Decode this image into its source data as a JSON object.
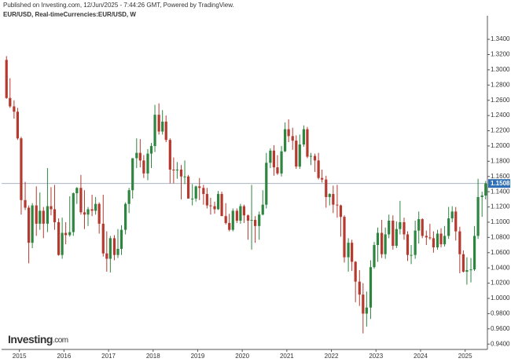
{
  "chart_data": {
    "type": "candlestick",
    "published": "Published on Investing.com, 12/Jun/2025 - 7:44:26 GMT, Powered by TradingView.",
    "title": "EUR/USD, Real-timeCurrencies:EUR/USD, W",
    "logo": {
      "brand": "Investing",
      "suffix": ".com"
    },
    "up_color": "#2e8540",
    "down_color": "#b5392e",
    "last_price": {
      "value": 1.1508,
      "label": "1.1508"
    },
    "last_price_color": "#2f6fb5",
    "xlim": [
      2014.6,
      2025.5
    ],
    "xticks": [
      2015,
      2016,
      2017,
      2018,
      2019,
      2020,
      2021,
      2022,
      2023,
      2024,
      2025
    ],
    "ylim": [
      0.933,
      1.371
    ],
    "yticks": [
      {
        "value": 0.94,
        "label": "0.9400"
      },
      {
        "value": 0.96,
        "label": "0.9600"
      },
      {
        "value": 0.98,
        "label": "0.9800"
      },
      {
        "value": 1.0,
        "label": "1.0000"
      },
      {
        "value": 1.02,
        "label": "1.0200"
      },
      {
        "value": 1.04,
        "label": "1.0400"
      },
      {
        "value": 1.06,
        "label": "1.0600"
      },
      {
        "value": 1.08,
        "label": "1.0800"
      },
      {
        "value": 1.1,
        "label": "1.1000"
      },
      {
        "value": 1.12,
        "label": "1.1200"
      },
      {
        "value": 1.14,
        "label": "1.1400"
      },
      {
        "value": 1.16,
        "label": "1.1600"
      },
      {
        "value": 1.18,
        "label": "1.1800"
      },
      {
        "value": 1.2,
        "label": "1.2000"
      },
      {
        "value": 1.22,
        "label": "1.2200"
      },
      {
        "value": 1.24,
        "label": "1.2400"
      },
      {
        "value": 1.26,
        "label": "1.2600"
      },
      {
        "value": 1.28,
        "label": "1.2800"
      },
      {
        "value": 1.3,
        "label": "1.3000"
      },
      {
        "value": 1.32,
        "label": "1.3200"
      },
      {
        "value": 1.34,
        "label": "1.3400"
      }
    ],
    "x": [
      2014.71,
      2014.79,
      2014.88,
      2014.96,
      2015.04,
      2015.13,
      2015.21,
      2015.29,
      2015.38,
      2015.46,
      2015.54,
      2015.63,
      2015.71,
      2015.79,
      2015.88,
      2015.96,
      2016.04,
      2016.13,
      2016.21,
      2016.29,
      2016.38,
      2016.46,
      2016.54,
      2016.63,
      2016.71,
      2016.79,
      2016.88,
      2016.96,
      2017.04,
      2017.13,
      2017.21,
      2017.29,
      2017.38,
      2017.46,
      2017.54,
      2017.63,
      2017.71,
      2017.79,
      2017.88,
      2017.96,
      2018.04,
      2018.13,
      2018.21,
      2018.29,
      2018.38,
      2018.46,
      2018.54,
      2018.63,
      2018.71,
      2018.79,
      2018.88,
      2018.96,
      2019.04,
      2019.13,
      2019.21,
      2019.29,
      2019.38,
      2019.46,
      2019.54,
      2019.63,
      2019.71,
      2019.79,
      2019.88,
      2019.96,
      2020.04,
      2020.13,
      2020.21,
      2020.29,
      2020.38,
      2020.46,
      2020.54,
      2020.63,
      2020.71,
      2020.79,
      2020.88,
      2020.96,
      2021.04,
      2021.13,
      2021.21,
      2021.29,
      2021.38,
      2021.46,
      2021.54,
      2021.63,
      2021.71,
      2021.79,
      2021.88,
      2021.96,
      2022.04,
      2022.13,
      2022.21,
      2022.29,
      2022.38,
      2022.46,
      2022.54,
      2022.63,
      2022.71,
      2022.79,
      2022.88,
      2022.96,
      2023.04,
      2023.13,
      2023.21,
      2023.29,
      2023.38,
      2023.46,
      2023.54,
      2023.63,
      2023.71,
      2023.79,
      2023.88,
      2023.96,
      2024.04,
      2024.13,
      2024.21,
      2024.29,
      2024.38,
      2024.46,
      2024.54,
      2024.63,
      2024.71,
      2024.79,
      2024.88,
      2024.96,
      2025.04,
      2025.13,
      2025.21,
      2025.29,
      2025.38,
      2025.46
    ],
    "candles": [
      [
        1.313,
        1.318,
        1.262,
        1.263
      ],
      [
        1.263,
        1.289,
        1.25,
        1.252
      ],
      [
        1.252,
        1.26,
        1.236,
        1.245
      ],
      [
        1.245,
        1.25,
        1.208,
        1.21
      ],
      [
        1.21,
        1.212,
        1.11,
        1.129
      ],
      [
        1.129,
        1.153,
        1.116,
        1.119
      ],
      [
        1.119,
        1.122,
        1.046,
        1.073
      ],
      [
        1.073,
        1.125,
        1.066,
        1.122
      ],
      [
        1.122,
        1.147,
        1.082,
        1.098
      ],
      [
        1.098,
        1.139,
        1.09,
        1.115
      ],
      [
        1.115,
        1.12,
        1.079,
        1.098
      ],
      [
        1.098,
        1.171,
        1.087,
        1.121
      ],
      [
        1.121,
        1.146,
        1.109,
        1.117
      ],
      [
        1.117,
        1.149,
        1.09,
        1.1
      ],
      [
        1.1,
        1.105,
        1.056,
        1.057
      ],
      [
        1.057,
        1.106,
        1.052,
        1.086
      ],
      [
        1.086,
        1.1,
        1.071,
        1.083
      ],
      [
        1.083,
        1.134,
        1.081,
        1.087
      ],
      [
        1.087,
        1.139,
        1.082,
        1.138
      ],
      [
        1.138,
        1.146,
        1.124,
        1.145
      ],
      [
        1.145,
        1.162,
        1.11,
        1.113
      ],
      [
        1.113,
        1.142,
        1.091,
        1.11
      ],
      [
        1.11,
        1.12,
        1.095,
        1.117
      ],
      [
        1.117,
        1.136,
        1.108,
        1.115
      ],
      [
        1.115,
        1.133,
        1.11,
        1.124
      ],
      [
        1.124,
        1.126,
        1.085,
        1.098
      ],
      [
        1.098,
        1.136,
        1.055,
        1.059
      ],
      [
        1.059,
        1.088,
        1.035,
        1.052
      ],
      [
        1.052,
        1.082,
        1.034,
        1.079
      ],
      [
        1.079,
        1.083,
        1.05,
        1.057
      ],
      [
        1.057,
        1.091,
        1.053,
        1.065
      ],
      [
        1.065,
        1.096,
        1.057,
        1.09
      ],
      [
        1.09,
        1.126,
        1.084,
        1.124
      ],
      [
        1.124,
        1.145,
        1.112,
        1.142
      ],
      [
        1.142,
        1.184,
        1.131,
        1.184
      ],
      [
        1.184,
        1.21,
        1.171,
        1.191
      ],
      [
        1.191,
        1.209,
        1.172,
        1.181
      ],
      [
        1.181,
        1.188,
        1.158,
        1.164
      ],
      [
        1.164,
        1.196,
        1.155,
        1.19
      ],
      [
        1.19,
        1.204,
        1.171,
        1.2
      ],
      [
        1.2,
        1.254,
        1.192,
        1.241
      ],
      [
        1.241,
        1.256,
        1.215,
        1.219
      ],
      [
        1.219,
        1.247,
        1.215,
        1.232
      ],
      [
        1.232,
        1.24,
        1.205,
        1.208
      ],
      [
        1.208,
        1.21,
        1.151,
        1.169
      ],
      [
        1.169,
        1.185,
        1.151,
        1.168
      ],
      [
        1.168,
        1.179,
        1.157,
        1.169
      ],
      [
        1.169,
        1.175,
        1.13,
        1.16
      ],
      [
        1.16,
        1.181,
        1.15,
        1.16
      ],
      [
        1.16,
        1.162,
        1.132,
        1.131
      ],
      [
        1.131,
        1.15,
        1.122,
        1.131
      ],
      [
        1.131,
        1.148,
        1.127,
        1.147
      ],
      [
        1.147,
        1.158,
        1.129,
        1.145
      ],
      [
        1.145,
        1.149,
        1.123,
        1.137
      ],
      [
        1.137,
        1.145,
        1.118,
        1.122
      ],
      [
        1.122,
        1.132,
        1.11,
        1.121
      ],
      [
        1.121,
        1.127,
        1.111,
        1.117
      ],
      [
        1.117,
        1.141,
        1.116,
        1.137
      ],
      [
        1.137,
        1.14,
        1.11,
        1.108
      ],
      [
        1.108,
        1.125,
        1.097,
        1.099
      ],
      [
        1.099,
        1.111,
        1.088,
        1.09
      ],
      [
        1.09,
        1.118,
        1.088,
        1.115
      ],
      [
        1.115,
        1.118,
        1.099,
        1.102
      ],
      [
        1.102,
        1.124,
        1.098,
        1.121
      ],
      [
        1.121,
        1.123,
        1.099,
        1.109
      ],
      [
        1.109,
        1.11,
        1.077,
        1.102
      ],
      [
        1.102,
        1.149,
        1.064,
        1.103
      ],
      [
        1.103,
        1.108,
        1.073,
        1.095
      ],
      [
        1.095,
        1.114,
        1.077,
        1.11
      ],
      [
        1.11,
        1.142,
        1.109,
        1.123
      ],
      [
        1.123,
        1.191,
        1.118,
        1.178
      ],
      [
        1.178,
        1.197,
        1.171,
        1.194
      ],
      [
        1.194,
        1.201,
        1.161,
        1.172
      ],
      [
        1.172,
        1.188,
        1.162,
        1.164
      ],
      [
        1.164,
        1.2,
        1.16,
        1.193
      ],
      [
        1.193,
        1.231,
        1.192,
        1.222
      ],
      [
        1.222,
        1.235,
        1.205,
        1.213
      ],
      [
        1.213,
        1.224,
        1.195,
        1.207
      ],
      [
        1.207,
        1.214,
        1.17,
        1.173
      ],
      [
        1.173,
        1.215,
        1.17,
        1.202
      ],
      [
        1.202,
        1.227,
        1.199,
        1.222
      ],
      [
        1.222,
        1.225,
        1.184,
        1.186
      ],
      [
        1.186,
        1.191,
        1.175,
        1.187
      ],
      [
        1.187,
        1.19,
        1.166,
        1.181
      ],
      [
        1.181,
        1.191,
        1.156,
        1.158
      ],
      [
        1.158,
        1.169,
        1.152,
        1.156
      ],
      [
        1.156,
        1.161,
        1.119,
        1.133
      ],
      [
        1.133,
        1.138,
        1.122,
        1.137
      ],
      [
        1.137,
        1.148,
        1.112,
        1.123
      ],
      [
        1.123,
        1.149,
        1.106,
        1.122
      ],
      [
        1.122,
        1.123,
        1.081,
        1.107
      ],
      [
        1.107,
        1.109,
        1.047,
        1.054
      ],
      [
        1.054,
        1.079,
        1.035,
        1.073
      ],
      [
        1.073,
        1.077,
        1.036,
        1.048
      ],
      [
        1.048,
        1.049,
        0.995,
        1.022
      ],
      [
        1.022,
        1.037,
        0.99,
        1.005
      ],
      [
        1.005,
        1.02,
        0.954,
        0.98
      ],
      [
        0.98,
        1.009,
        0.963,
        0.988
      ],
      [
        0.988,
        1.05,
        0.973,
        1.041
      ],
      [
        1.041,
        1.074,
        1.039,
        1.07
      ],
      [
        1.07,
        1.093,
        1.048,
        1.086
      ],
      [
        1.086,
        1.103,
        1.053,
        1.058
      ],
      [
        1.058,
        1.093,
        1.052,
        1.084
      ],
      [
        1.084,
        1.11,
        1.079,
        1.102
      ],
      [
        1.102,
        1.109,
        1.064,
        1.069
      ],
      [
        1.069,
        1.101,
        1.066,
        1.091
      ],
      [
        1.091,
        1.128,
        1.084,
        1.1
      ],
      [
        1.1,
        1.106,
        1.077,
        1.084
      ],
      [
        1.084,
        1.088,
        1.049,
        1.057
      ],
      [
        1.057,
        1.07,
        1.045,
        1.057
      ],
      [
        1.057,
        1.102,
        1.052,
        1.089
      ],
      [
        1.089,
        1.114,
        1.072,
        1.104
      ],
      [
        1.104,
        1.105,
        1.079,
        1.082
      ],
      [
        1.082,
        1.089,
        1.07,
        1.08
      ],
      [
        1.08,
        1.098,
        1.077,
        1.079
      ],
      [
        1.079,
        1.088,
        1.06,
        1.067
      ],
      [
        1.067,
        1.09,
        1.064,
        1.085
      ],
      [
        1.085,
        1.092,
        1.067,
        1.071
      ],
      [
        1.071,
        1.095,
        1.068,
        1.082
      ],
      [
        1.082,
        1.12,
        1.078,
        1.105
      ],
      [
        1.105,
        1.121,
        1.1,
        1.114
      ],
      [
        1.114,
        1.12,
        1.076,
        1.088
      ],
      [
        1.088,
        1.094,
        1.033,
        1.058
      ],
      [
        1.058,
        1.063,
        1.034,
        1.035
      ],
      [
        1.035,
        1.054,
        1.018,
        1.037
      ],
      [
        1.037,
        1.053,
        1.021,
        1.038
      ],
      [
        1.038,
        1.095,
        1.036,
        1.082
      ],
      [
        1.082,
        1.157,
        1.078,
        1.133
      ],
      [
        1.133,
        1.14,
        1.107,
        1.135
      ],
      [
        1.135,
        1.154,
        1.13,
        1.151
      ]
    ]
  }
}
